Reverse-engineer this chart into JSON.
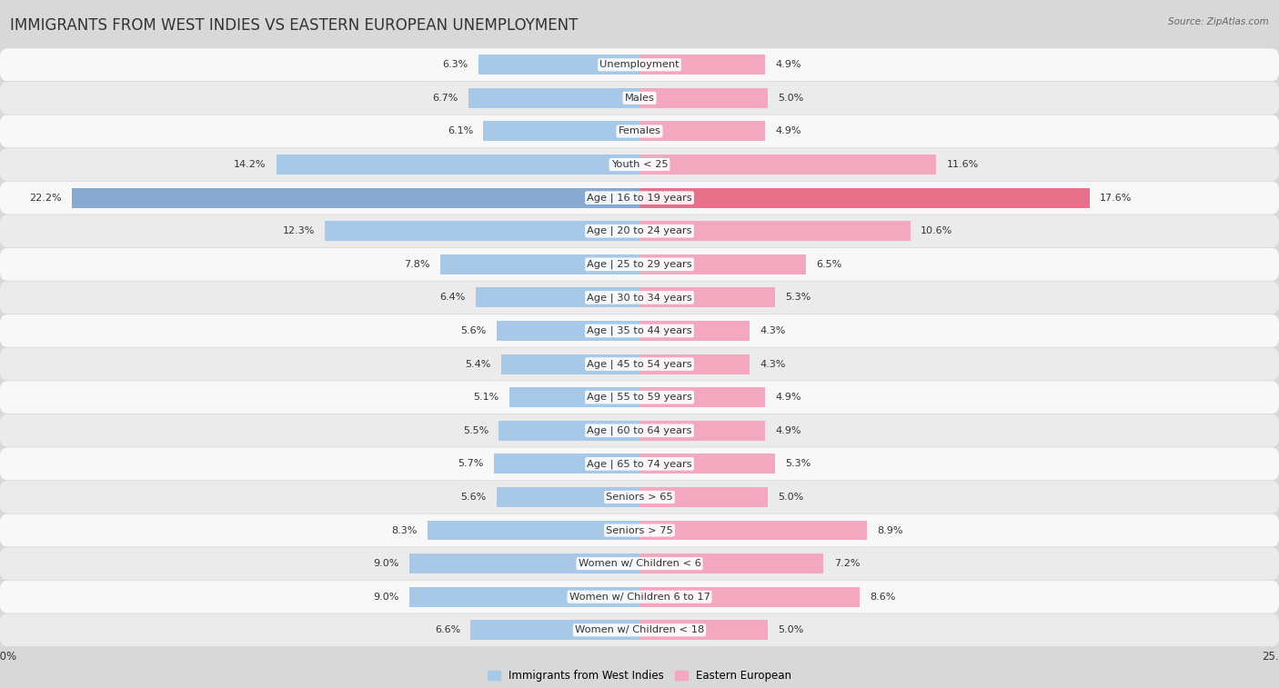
{
  "title": "IMMIGRANTS FROM WEST INDIES VS EASTERN EUROPEAN UNEMPLOYMENT",
  "source": "Source: ZipAtlas.com",
  "categories": [
    "Unemployment",
    "Males",
    "Females",
    "Youth < 25",
    "Age | 16 to 19 years",
    "Age | 20 to 24 years",
    "Age | 25 to 29 years",
    "Age | 30 to 34 years",
    "Age | 35 to 44 years",
    "Age | 45 to 54 years",
    "Age | 55 to 59 years",
    "Age | 60 to 64 years",
    "Age | 65 to 74 years",
    "Seniors > 65",
    "Seniors > 75",
    "Women w/ Children < 6",
    "Women w/ Children 6 to 17",
    "Women w/ Children < 18"
  ],
  "west_indies": [
    6.3,
    6.7,
    6.1,
    14.2,
    22.2,
    12.3,
    7.8,
    6.4,
    5.6,
    5.4,
    5.1,
    5.5,
    5.7,
    5.6,
    8.3,
    9.0,
    9.0,
    6.6
  ],
  "eastern_european": [
    4.9,
    5.0,
    4.9,
    11.6,
    17.6,
    10.6,
    6.5,
    5.3,
    4.3,
    4.3,
    4.9,
    4.9,
    5.3,
    5.0,
    8.9,
    7.2,
    8.6,
    5.0
  ],
  "west_indies_color": "#a8c8e8",
  "eastern_european_color": "#f4a8c0",
  "highlight_wi_color": "#88aad0",
  "highlight_ee_color": "#e8708a",
  "axis_limit": 25.0,
  "bar_height": 0.6,
  "row_even_color": "#f8f8f8",
  "row_odd_color": "#ebebeb",
  "legend_wi": "Immigrants from West Indies",
  "legend_ee": "Eastern European",
  "title_fontsize": 12,
  "label_fontsize": 8.2,
  "value_fontsize": 8.0,
  "bg_color": "#d8d8d8"
}
